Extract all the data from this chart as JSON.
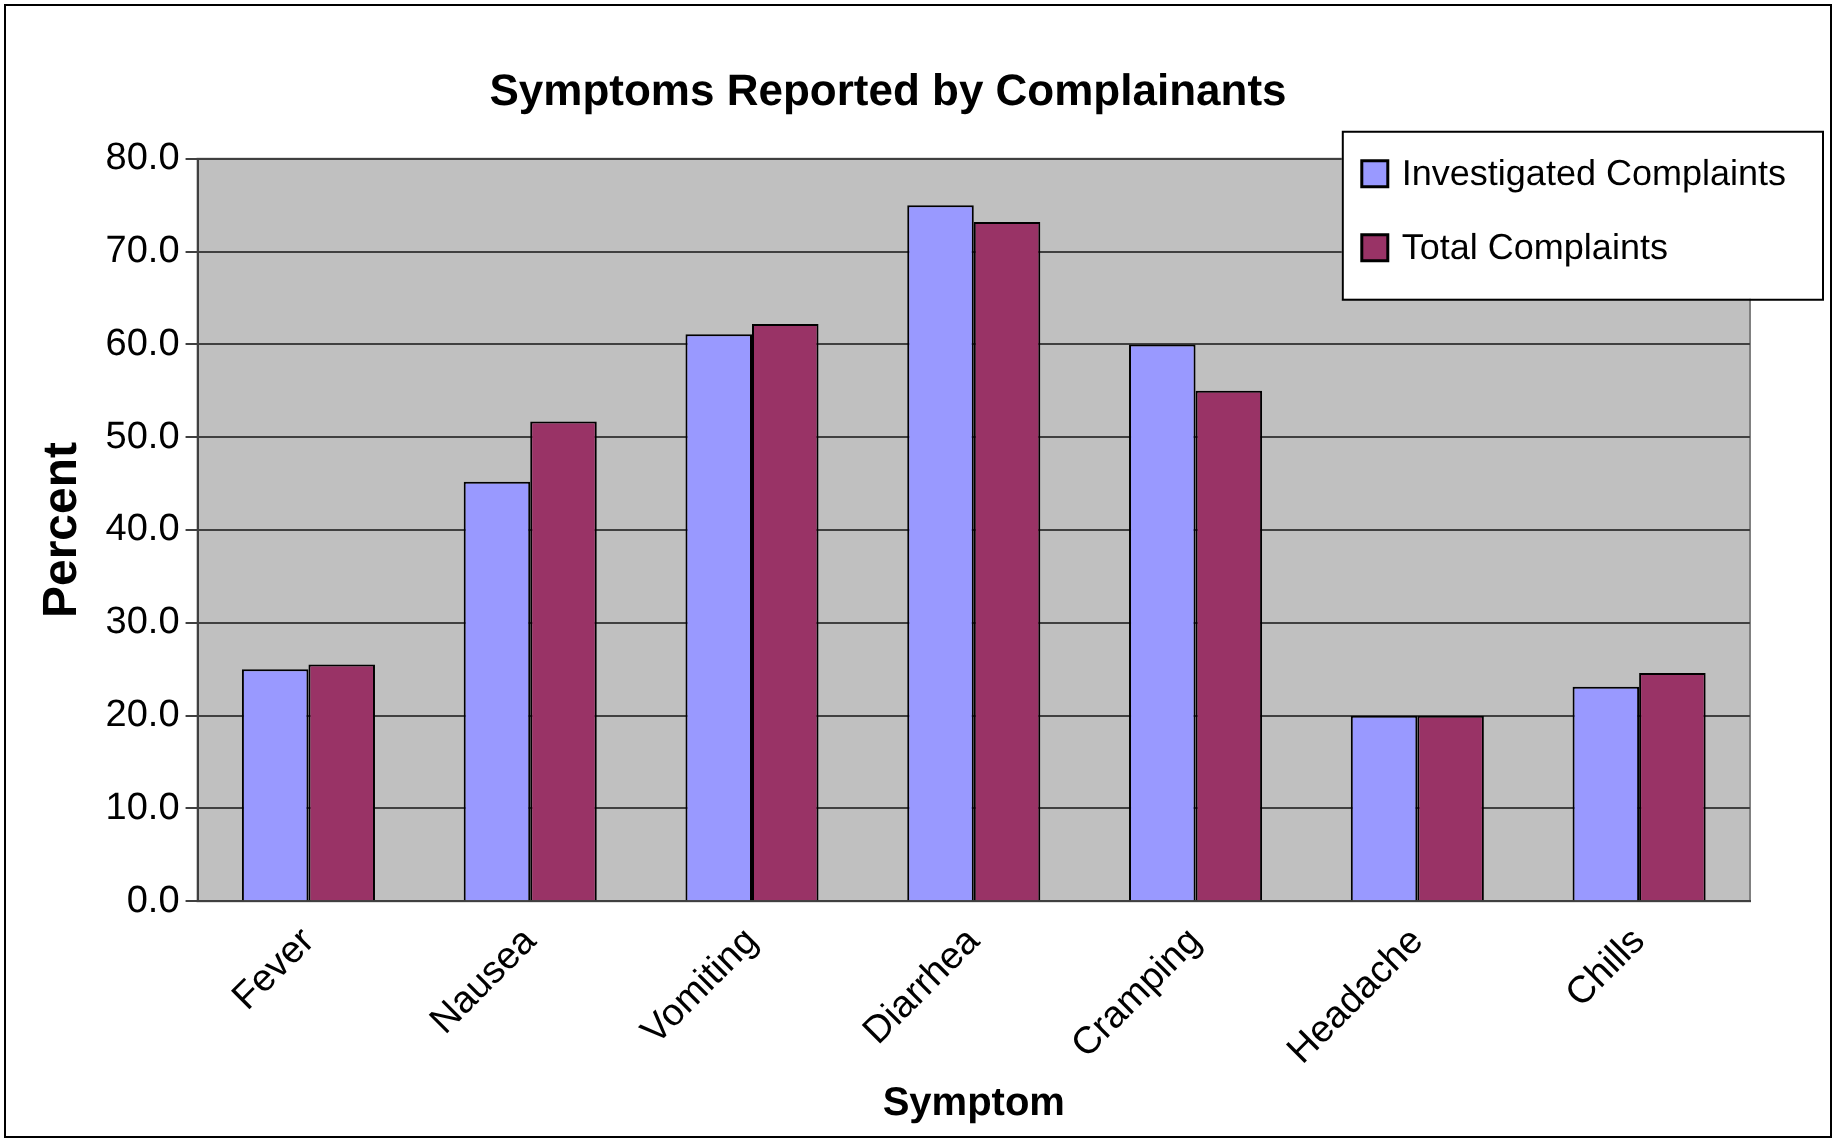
{
  "chart_data": {
    "type": "bar",
    "title": "Symptoms Reported by Complainants",
    "xlabel": "Symptom",
    "ylabel": "Percent",
    "categories": [
      "Fever",
      "Nausea",
      "Vomiting",
      "Diarrhea",
      "Cramping",
      "Headache",
      "Chills"
    ],
    "series": [
      {
        "name": "Investigated Complaints",
        "color": "#9999ff",
        "values": [
          25.0,
          45.2,
          61.1,
          75.0,
          60.0,
          20.0,
          23.1
        ]
      },
      {
        "name": "Total Complaints",
        "color": "#993366",
        "values": [
          25.5,
          51.7,
          62.2,
          73.2,
          55.0,
          20.0,
          24.6
        ]
      }
    ],
    "ylim": [
      0,
      80
    ],
    "yticks": [
      {
        "value": 0,
        "label": "0.0"
      },
      {
        "value": 10,
        "label": "10.0"
      },
      {
        "value": 20,
        "label": "20.0"
      },
      {
        "value": 30,
        "label": "30.0"
      },
      {
        "value": 40,
        "label": "40.0"
      },
      {
        "value": 50,
        "label": "50.0"
      },
      {
        "value": 60,
        "label": "60.0"
      },
      {
        "value": 70,
        "label": "70.0"
      },
      {
        "value": 80,
        "label": "80.0"
      }
    ],
    "grid": "y",
    "legend": "top right"
  }
}
